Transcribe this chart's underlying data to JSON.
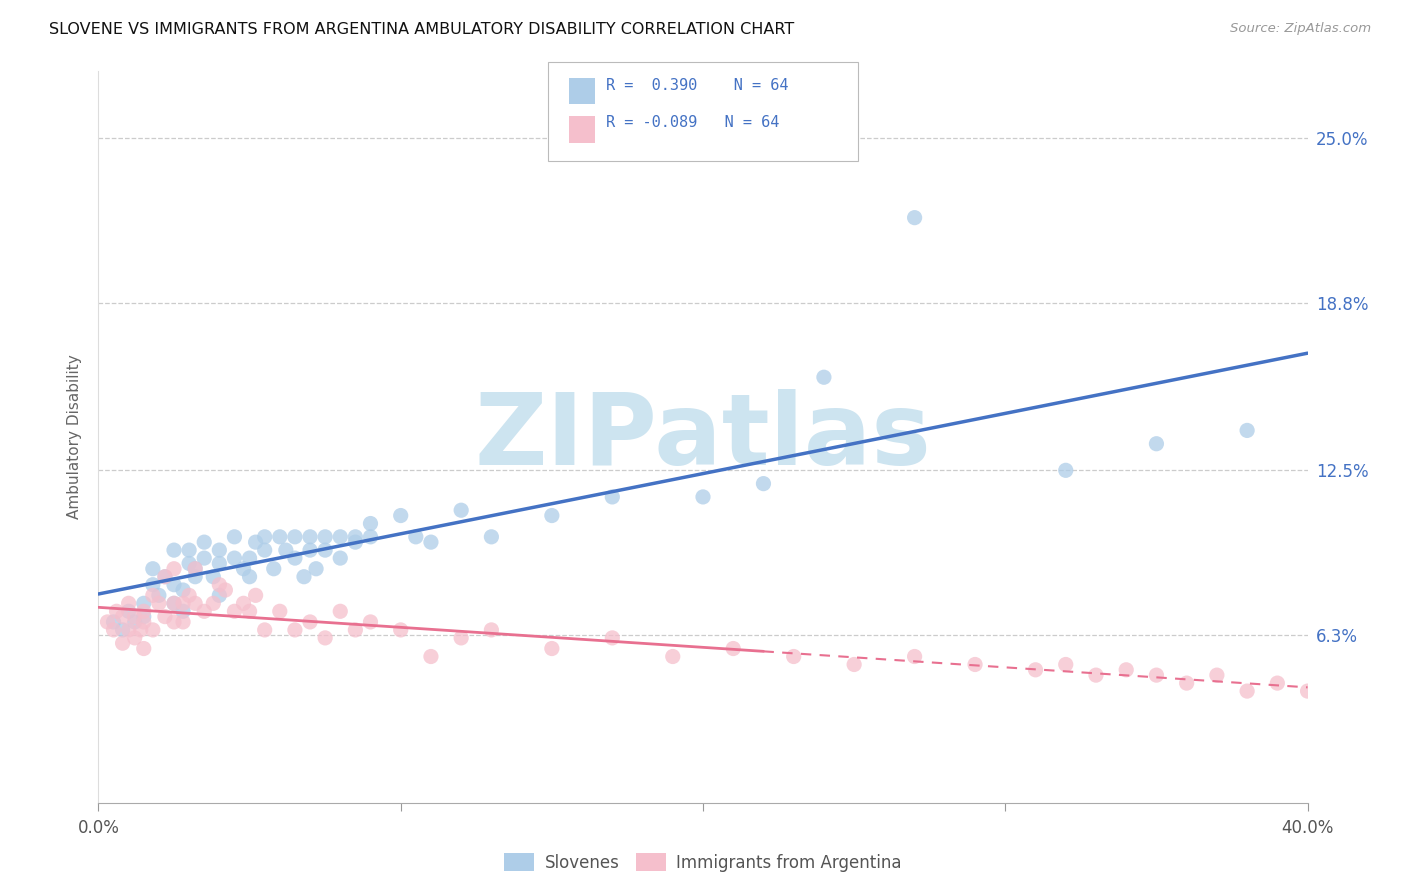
{
  "title": "SLOVENE VS IMMIGRANTS FROM ARGENTINA AMBULATORY DISABILITY CORRELATION CHART",
  "source": "Source: ZipAtlas.com",
  "ylabel": "Ambulatory Disability",
  "ytick_labels": [
    "6.3%",
    "12.5%",
    "18.8%",
    "25.0%"
  ],
  "ytick_values": [
    0.063,
    0.125,
    0.188,
    0.25
  ],
  "xmin": 0.0,
  "xmax": 0.4,
  "ymin": 0.0,
  "ymax": 0.275,
  "legend_blue_r": "R =  0.390",
  "legend_blue_n": "N = 64",
  "legend_pink_r": "R = -0.089",
  "legend_pink_n": "N = 64",
  "legend_label_blue": "Slovenes",
  "legend_label_pink": "Immigrants from Argentina",
  "blue_color": "#aecde8",
  "pink_color": "#f5bfcc",
  "blue_line_color": "#4472c4",
  "pink_line_color": "#e87090",
  "text_color": "#4472c4",
  "watermark_color": "#cde4f0",
  "blue_scatter_x": [
    0.005,
    0.008,
    0.01,
    0.012,
    0.015,
    0.015,
    0.018,
    0.018,
    0.02,
    0.022,
    0.025,
    0.025,
    0.025,
    0.028,
    0.028,
    0.03,
    0.03,
    0.032,
    0.032,
    0.035,
    0.035,
    0.038,
    0.04,
    0.04,
    0.04,
    0.045,
    0.045,
    0.048,
    0.05,
    0.05,
    0.052,
    0.055,
    0.055,
    0.058,
    0.06,
    0.062,
    0.065,
    0.065,
    0.068,
    0.07,
    0.07,
    0.072,
    0.075,
    0.075,
    0.08,
    0.08,
    0.085,
    0.085,
    0.09,
    0.09,
    0.1,
    0.105,
    0.11,
    0.12,
    0.13,
    0.15,
    0.17,
    0.2,
    0.22,
    0.24,
    0.27,
    0.32,
    0.35,
    0.38
  ],
  "blue_scatter_y": [
    0.068,
    0.065,
    0.072,
    0.068,
    0.075,
    0.07,
    0.082,
    0.088,
    0.078,
    0.085,
    0.075,
    0.082,
    0.095,
    0.072,
    0.08,
    0.09,
    0.095,
    0.088,
    0.085,
    0.092,
    0.098,
    0.085,
    0.09,
    0.095,
    0.078,
    0.092,
    0.1,
    0.088,
    0.085,
    0.092,
    0.098,
    0.1,
    0.095,
    0.088,
    0.1,
    0.095,
    0.092,
    0.1,
    0.085,
    0.1,
    0.095,
    0.088,
    0.1,
    0.095,
    0.092,
    0.1,
    0.1,
    0.098,
    0.1,
    0.105,
    0.108,
    0.1,
    0.098,
    0.11,
    0.1,
    0.108,
    0.115,
    0.115,
    0.12,
    0.16,
    0.22,
    0.125,
    0.135,
    0.14
  ],
  "pink_scatter_x": [
    0.003,
    0.005,
    0.006,
    0.008,
    0.008,
    0.01,
    0.01,
    0.012,
    0.012,
    0.014,
    0.015,
    0.015,
    0.015,
    0.018,
    0.018,
    0.02,
    0.022,
    0.022,
    0.025,
    0.025,
    0.025,
    0.028,
    0.028,
    0.03,
    0.032,
    0.032,
    0.035,
    0.038,
    0.04,
    0.042,
    0.045,
    0.048,
    0.05,
    0.052,
    0.055,
    0.06,
    0.065,
    0.07,
    0.075,
    0.08,
    0.085,
    0.09,
    0.1,
    0.11,
    0.12,
    0.13,
    0.15,
    0.17,
    0.19,
    0.21,
    0.23,
    0.25,
    0.27,
    0.29,
    0.31,
    0.32,
    0.33,
    0.34,
    0.35,
    0.36,
    0.37,
    0.38,
    0.39,
    0.4
  ],
  "pink_scatter_y": [
    0.068,
    0.065,
    0.072,
    0.06,
    0.07,
    0.065,
    0.075,
    0.062,
    0.07,
    0.065,
    0.072,
    0.068,
    0.058,
    0.078,
    0.065,
    0.075,
    0.085,
    0.07,
    0.088,
    0.075,
    0.068,
    0.075,
    0.068,
    0.078,
    0.088,
    0.075,
    0.072,
    0.075,
    0.082,
    0.08,
    0.072,
    0.075,
    0.072,
    0.078,
    0.065,
    0.072,
    0.065,
    0.068,
    0.062,
    0.072,
    0.065,
    0.068,
    0.065,
    0.055,
    0.062,
    0.065,
    0.058,
    0.062,
    0.055,
    0.058,
    0.055,
    0.052,
    0.055,
    0.052,
    0.05,
    0.052,
    0.048,
    0.05,
    0.048,
    0.045,
    0.048,
    0.042,
    0.045,
    0.042
  ]
}
